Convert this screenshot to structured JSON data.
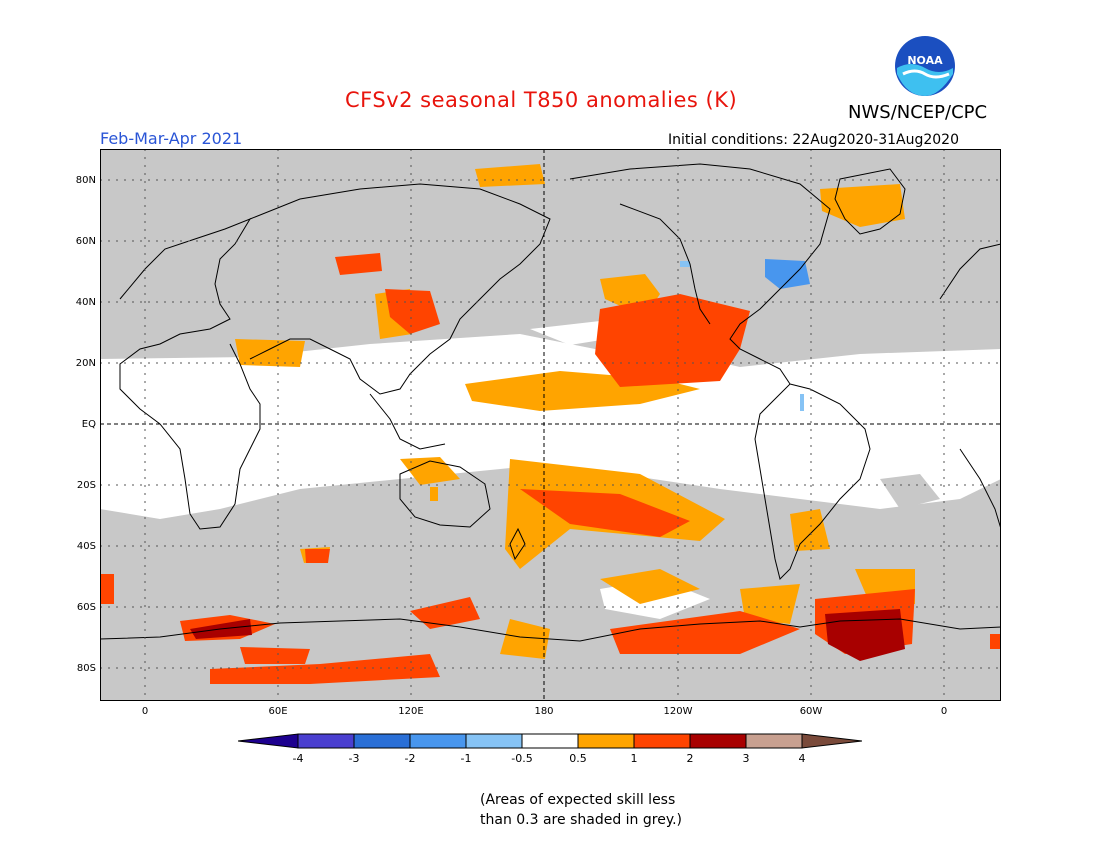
{
  "title": "CFSv2 seasonal T850 anomalies (K)",
  "agency": "NWS/NCEP/CPC",
  "period": "Feb-Mar-Apr 2021",
  "initial_conditions": "Initial conditions: 22Aug2020-31Aug2020",
  "logo_text": "NOAA",
  "latitude_labels": [
    "80N",
    "60N",
    "40N",
    "20N",
    "EQ",
    "20S",
    "40S",
    "60S",
    "80S"
  ],
  "longitude_labels": [
    "0",
    "60E",
    "120E",
    "180",
    "120W",
    "60W",
    "0"
  ],
  "colorbar": {
    "labels": [
      "-4",
      "-3",
      "-2",
      "-1",
      "-0.5",
      "0.5",
      "1",
      "2",
      "3",
      "4"
    ],
    "colors": [
      "#1d008f",
      "#4a3fd0",
      "#2a6fd6",
      "#4896ee",
      "#86c3f5",
      "#ffffff",
      "#ffa400",
      "#ff4400",
      "#a80000",
      "#c8a090",
      "#7a4a3a"
    ]
  },
  "skill_note_line1": "(Areas of expected skill less",
  "skill_note_line2": "than 0.3 are shaded in grey.)",
  "colors": {
    "title": "#e8140c",
    "period": "#2a55d6",
    "low_skill_grey": "#c8c8c8",
    "anomaly_0_5_to_1": "#ffa400",
    "anomaly_1_to_2": "#ff4400",
    "anomaly_2_to_3": "#a80000",
    "anomaly_neg_1_to_neg_2": "#4896ee"
  }
}
